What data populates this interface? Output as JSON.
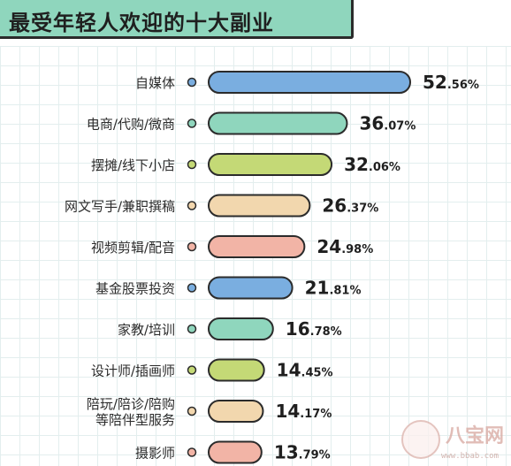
{
  "chart_data": {
    "type": "bar",
    "orientation": "horizontal",
    "title": "最受年轻人欢迎的十大副业",
    "categories": [
      [
        "自媒体"
      ],
      [
        "电商/代购/微商"
      ],
      [
        "摆摊/线下小店"
      ],
      [
        "网文写手/兼职撰稿"
      ],
      [
        "视频剪辑/配音"
      ],
      [
        "基金股票投资"
      ],
      [
        "家教/培训"
      ],
      [
        "设计师/插画师"
      ],
      [
        "陪玩/陪诊/陪购",
        "等陪伴型服务"
      ],
      [
        "摄影师"
      ]
    ],
    "values": [
      52.56,
      36.07,
      32.06,
      26.37,
      24.98,
      21.81,
      16.78,
      14.45,
      14.17,
      13.79
    ],
    "labels": [
      {
        "int": "52",
        "dec": ".56%"
      },
      {
        "int": "36",
        "dec": ".07%"
      },
      {
        "int": "32",
        "dec": ".06%"
      },
      {
        "int": "26",
        "dec": ".37%"
      },
      {
        "int": "24",
        "dec": ".98%"
      },
      {
        "int": "21",
        "dec": ".81%"
      },
      {
        "int": "16",
        "dec": ".78%"
      },
      {
        "int": "14",
        "dec": ".45%"
      },
      {
        "int": "14",
        "dec": ".17%"
      },
      {
        "int": "13",
        "dec": ".79%"
      }
    ],
    "colors": [
      "#7aaee0",
      "#8fd6bd",
      "#c4d976",
      "#f2d7ae",
      "#f2b4a6",
      "#7aaee0",
      "#8fd6bd",
      "#c4d976",
      "#f2d7ae",
      "#f2b4a6"
    ],
    "xlim": [
      0,
      52.56
    ],
    "grid": true,
    "legend": "none"
  },
  "watermark": {
    "text": "八宝网",
    "url": "www.bbab.com"
  }
}
